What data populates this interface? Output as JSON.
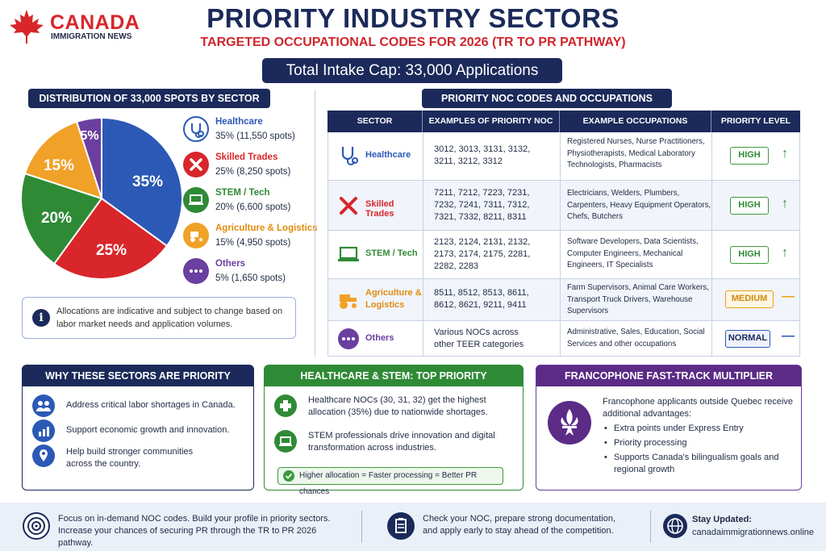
{
  "brand": {
    "name": "CANADA",
    "tagline": "IMMIGRATION NEWS"
  },
  "header": {
    "title": "PRIORITY INDUSTRY SECTORS",
    "subtitle": "TARGETED OCCUPATIONAL CODES FOR 2026 (TR TO PR PATHWAY)",
    "cap": "Total Intake Cap: 33,000 Applications"
  },
  "distribution": {
    "heading": "DISTRIBUTION OF 33,000 SPOTS BY SECTOR",
    "slices": [
      {
        "label": "35%",
        "value": 35,
        "color": "#2b59b5"
      },
      {
        "label": "25%",
        "value": 25,
        "color": "#d8262b"
      },
      {
        "label": "20%",
        "value": 20,
        "color": "#2f8a36"
      },
      {
        "label": "15%",
        "value": 15,
        "color": "#f0a127"
      },
      {
        "label": "5%",
        "value": 5,
        "color": "#6a3fa0"
      }
    ],
    "legend": [
      {
        "name": "Healthcare",
        "value": "35% (11,550 spots)",
        "color": "#2b59b5",
        "icon": "stethoscope-icon"
      },
      {
        "name": "Skilled Trades",
        "value": "25% (8,250 spots)",
        "color": "#d8262b",
        "icon": "tools-icon"
      },
      {
        "name": "STEM / Tech",
        "value": "20% (6,600 spots)",
        "color": "#2f8a36",
        "icon": "laptop-icon"
      },
      {
        "name": "Agriculture & Logistics",
        "value": "15% (4,950 spots)",
        "color": "#f0a127",
        "icon": "tractor-icon"
      },
      {
        "name": "Others",
        "value": "5% (1,650 spots)",
        "color": "#6a3fa0",
        "icon": "dots-icon"
      }
    ],
    "note": "Allocations are indicative and subject to change based on labor market needs and application volumes."
  },
  "noc": {
    "heading": "PRIORITY NOC CODES AND OCCUPATIONS",
    "columns": [
      "SECTOR",
      "EXAMPLES OF PRIORITY NOC CODES",
      "EXAMPLE OCCUPATIONS",
      "PRIORITY LEVEL"
    ],
    "rows": [
      {
        "sector": "Healthcare",
        "codes_l1": "3012, 3013, 3131, 3132,",
        "codes_l2": "3211, 3212, 3312",
        "codes_l3": "",
        "occ": "Registered Nurses, Nurse Practitioners, Physiotherapists, Medical Laboratory Technologists, Pharmacists",
        "level": "HIGH",
        "mark": "↑",
        "color": "#2b59b5",
        "level_color": "#3d9a3d"
      },
      {
        "sector": "Skilled Trades",
        "codes_l1": "7211, 7212, 7223, 7231,",
        "codes_l2": "7232, 7241, 7311, 7312,",
        "codes_l3": "7321, 7332, 8211, 8311",
        "occ": "Electricians, Welders, Plumbers, Carpenters, Heavy Equipment Operators, Chefs, Butchers",
        "level": "HIGH",
        "mark": "↑",
        "color": "#d8262b",
        "level_color": "#3d9a3d"
      },
      {
        "sector": "STEM / Tech",
        "codes_l1": "2123, 2124, 2131, 2132,",
        "codes_l2": "2173, 2174, 2175, 2281,",
        "codes_l3": "2282, 2283",
        "occ": "Software Developers, Data Scientists, Computer Engineers, Mechanical Engineers, IT Specialists",
        "level": "HIGH",
        "mark": "↑",
        "color": "#2f8a36",
        "level_color": "#3d9a3d"
      },
      {
        "sector": "Agriculture & Logistics",
        "codes_l1": "8511, 8512, 8513, 8611,",
        "codes_l2": "8612, 8621, 9211, 9411",
        "codes_l3": "",
        "occ": "Farm Supervisors, Animal Care Workers, Transport Truck Drivers, Warehouse Supervisors",
        "level": "MEDIUM",
        "mark": "—",
        "color": "#f0a127",
        "level_color": "#e8a317"
      },
      {
        "sector": "Others",
        "codes_l1": "Various NOCs across",
        "codes_l2": "other TEER categories",
        "codes_l3": "",
        "occ": "Administrative, Sales, Education, Social Services and other occupations",
        "level": "NORMAL",
        "mark": "—",
        "color": "#6a3fa0",
        "level_color": "#2b59b5"
      }
    ]
  },
  "why": {
    "heading": "WHY THESE SECTORS ARE PRIORITY",
    "items": [
      {
        "text": "Address critical labor shortages in Canada.",
        "icon": "people-icon"
      },
      {
        "text": "Support economic growth and innovation.",
        "icon": "growth-chart-icon"
      },
      {
        "text": "Help build stronger communities across the country.",
        "icon": "location-pin-icon"
      }
    ]
  },
  "hs": {
    "heading": "HEALTHCARE & STEM: TOP PRIORITY",
    "items": [
      {
        "text": "Healthcare NOCs (30, 31, 32) get the highest allocation (35%) due to nationwide shortages.",
        "icon": "medical-cross-icon"
      },
      {
        "text": "STEM professionals drive innovation and digital transformation across industries.",
        "icon": "laptop-icon"
      }
    ],
    "callout": "Higher allocation = Faster processing = Better PR chances"
  },
  "franco": {
    "heading": "FRANCOPHONE FAST-TRACK MULTIPLIER",
    "intro": "Francophone applicants outside Quebec receive additional advantages:",
    "bullets": [
      "Extra points under Express Entry",
      "Priority processing",
      "Supports Canada's bilingualism goals and regional growth"
    ]
  },
  "footer": {
    "left": "Focus on in-demand NOC codes. Build your profile in priority sectors. Increase your chances of securing PR through the TR to PR 2026 pathway.",
    "middle": "Check your NOC, prepare strong documentation, and apply early to stay ahead of the competition.",
    "stay_label": "Stay Updated:",
    "site": "canadaimmigrationnews.online"
  }
}
